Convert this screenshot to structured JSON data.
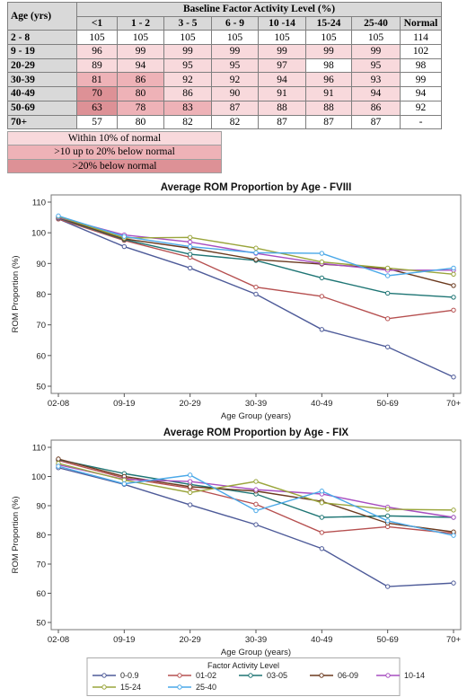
{
  "table": {
    "header_title": "Baseline Factor Activity Level (%)",
    "age_header": "Age (yrs)",
    "columns": [
      "<1",
      "1 - 2",
      "3 - 5",
      "6 - 9",
      "10 -14",
      "15-24",
      "25-40",
      "Normal"
    ],
    "rows": [
      {
        "age": "2 - 8",
        "values": [
          "105",
          "105",
          "105",
          "105",
          "105",
          "105",
          "105",
          "114"
        ],
        "shade": [
          "w",
          "w",
          "w",
          "w",
          "w",
          "w",
          "w"
        ]
      },
      {
        "age": "9 - 19",
        "values": [
          "96",
          "99",
          "99",
          "99",
          "99",
          "99",
          "99",
          "102"
        ],
        "shade": [
          "a",
          "a",
          "a",
          "a",
          "a",
          "a",
          "a"
        ]
      },
      {
        "age": "20-29",
        "values": [
          "89",
          "94",
          "95",
          "95",
          "97",
          "98",
          "95",
          "98"
        ],
        "shade": [
          "a",
          "a",
          "a",
          "a",
          "a",
          "w",
          "a"
        ]
      },
      {
        "age": "30-39",
        "values": [
          "81",
          "86",
          "92",
          "92",
          "94",
          "96",
          "93",
          "99"
        ],
        "shade": [
          "b",
          "b",
          "a",
          "a",
          "a",
          "a",
          "a"
        ]
      },
      {
        "age": "40-49",
        "values": [
          "70",
          "80",
          "86",
          "90",
          "91",
          "91",
          "94",
          "94"
        ],
        "shade": [
          "c",
          "b",
          "a",
          "a",
          "a",
          "a",
          "a"
        ]
      },
      {
        "age": "50-69",
        "values": [
          "63",
          "78",
          "83",
          "87",
          "88",
          "88",
          "86",
          "92"
        ],
        "shade": [
          "c",
          "b",
          "b",
          "a",
          "a",
          "a",
          "a"
        ]
      },
      {
        "age": "70+",
        "values": [
          "57",
          "80",
          "82",
          "82",
          "87",
          "87",
          "87",
          "-"
        ],
        "shade": [
          "w",
          "w",
          "w",
          "w",
          "w",
          "w",
          "w"
        ]
      }
    ],
    "shade_colors": {
      "w": "#ffffff",
      "a": "#f8d9dc",
      "b": "#eeb2b7",
      "c": "#dd9196"
    }
  },
  "shade_legend": [
    {
      "label": "Within 10% of normal",
      "color": "#f8d9dc"
    },
    {
      "label": ">10 up to 20% below normal",
      "color": "#eeb2b7"
    },
    {
      "label": ">20% below normal",
      "color": "#dd9196"
    }
  ],
  "chart_data": [
    {
      "type": "line",
      "title": "Average ROM Proportion by Age - FVIII",
      "xlabel": "Age Group (years)",
      "ylabel": "ROM Proportion (%)",
      "categories": [
        "02-08",
        "09-19",
        "20-29",
        "30-39",
        "40-49",
        "50-69",
        "70+"
      ],
      "ylim": [
        50,
        110
      ],
      "yticks": [
        50,
        60,
        70,
        80,
        90,
        100,
        110
      ],
      "series": [
        {
          "name": "0-0.9",
          "color": "#4e5b99",
          "values": [
            104.5,
            95.5,
            88.5,
            80,
            68.5,
            62.8,
            53
          ]
        },
        {
          "name": "01-02",
          "color": "#b65050",
          "values": [
            104.5,
            97.5,
            92,
            82.3,
            79.3,
            72,
            74.8
          ]
        },
        {
          "name": "03-05",
          "color": "#1e7574",
          "values": [
            104.8,
            97.8,
            93,
            91,
            85.3,
            80.3,
            79
          ]
        },
        {
          "name": "06-09",
          "color": "#6b3a1f",
          "values": [
            105,
            98,
            95,
            91.3,
            89.8,
            88.3,
            82.8
          ]
        },
        {
          "name": "10-14",
          "color": "#a74ec0",
          "values": [
            105,
            99.3,
            97,
            93.3,
            90,
            87.8,
            87.8
          ]
        },
        {
          "name": "15-24",
          "color": "#9aa53c",
          "values": [
            105.3,
            98.3,
            98.5,
            95,
            90.5,
            88.5,
            86.5
          ]
        },
        {
          "name": "25-40",
          "color": "#4aa8e8",
          "values": [
            105.5,
            98.8,
            95.5,
            93.5,
            93.3,
            86,
            88.5
          ]
        }
      ]
    },
    {
      "type": "line",
      "title": "Average ROM Proportion by Age - FIX",
      "xlabel": "Age Group (years)",
      "ylabel": "ROM Proportion (%)",
      "categories": [
        "02-08",
        "09-19",
        "20-29",
        "30-39",
        "40-49",
        "50-69",
        "70+"
      ],
      "ylim": [
        50,
        110
      ],
      "yticks": [
        50,
        60,
        70,
        80,
        90,
        100,
        110
      ],
      "series": [
        {
          "name": "0-0.9",
          "color": "#4e5b99",
          "values": [
            103,
            97.3,
            90.3,
            83.5,
            75.3,
            62.3,
            63.5
          ]
        },
        {
          "name": "01-02",
          "color": "#b65050",
          "values": [
            105.5,
            99.5,
            96,
            90.5,
            80.8,
            82.8,
            80.5
          ]
        },
        {
          "name": "03-05",
          "color": "#1e7574",
          "values": [
            105.8,
            101,
            97.3,
            94,
            86,
            86.5,
            86
          ]
        },
        {
          "name": "06-09",
          "color": "#6b3a1f",
          "values": [
            106,
            100,
            96.5,
            95,
            91.5,
            84,
            81
          ]
        },
        {
          "name": "10-14",
          "color": "#a74ec0",
          "values": [
            104,
            99,
            98.3,
            95.5,
            94,
            89.5,
            86
          ]
        },
        {
          "name": "15-24",
          "color": "#9aa53c",
          "values": [
            104.5,
            98.8,
            94.5,
            98.3,
            91,
            88.8,
            88.5
          ]
        },
        {
          "name": "25-40",
          "color": "#4aa8e8",
          "values": [
            103.5,
            97.5,
            100.5,
            88.3,
            95,
            84.8,
            79.8
          ]
        }
      ]
    }
  ],
  "series_legend": {
    "title": "Factor Activity Level",
    "items": [
      {
        "name": "0-0.9",
        "color": "#4e5b99"
      },
      {
        "name": "01-02",
        "color": "#b65050"
      },
      {
        "name": "03-05",
        "color": "#1e7574"
      },
      {
        "name": "06-09",
        "color": "#6b3a1f"
      },
      {
        "name": "10-14",
        "color": "#a74ec0"
      },
      {
        "name": "15-24",
        "color": "#9aa53c"
      },
      {
        "name": "25-40",
        "color": "#4aa8e8"
      }
    ]
  }
}
